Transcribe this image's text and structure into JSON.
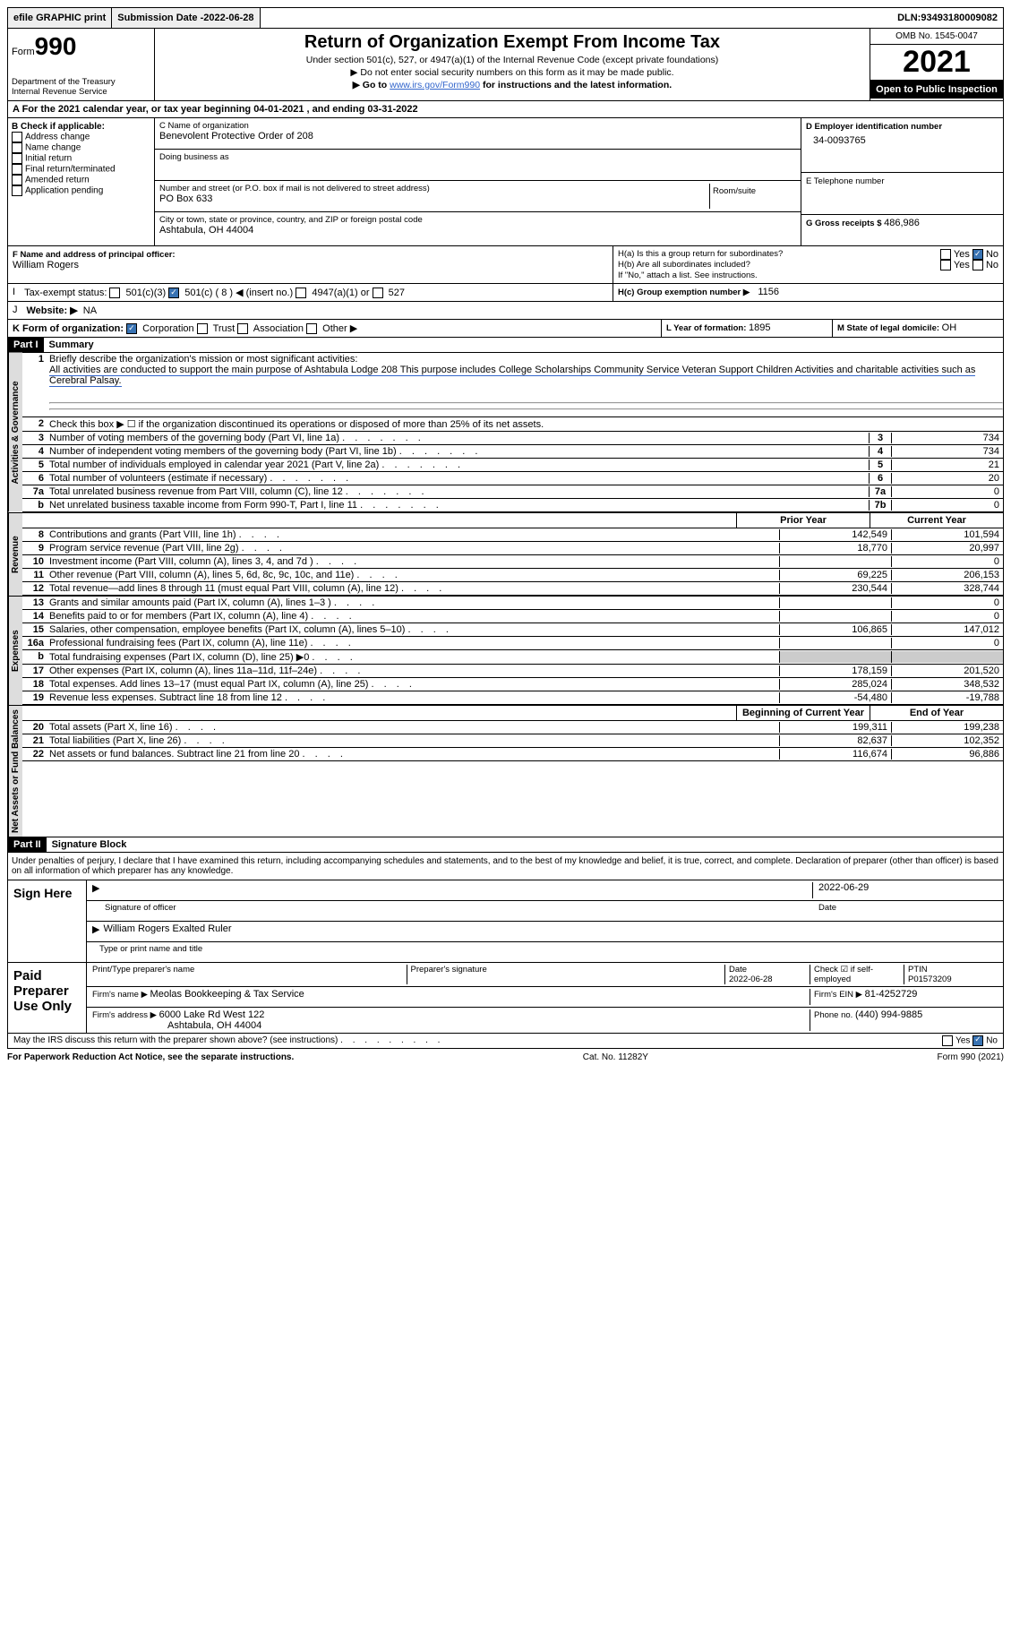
{
  "topbar": {
    "efile": "efile GRAPHIC print",
    "sub_label": "Submission Date - ",
    "sub_date": "2022-06-28",
    "dln_label": "DLN: ",
    "dln": "93493180009082"
  },
  "header": {
    "form_word": "Form",
    "form_no": "990",
    "dept": "Department of the Treasury",
    "irs": "Internal Revenue Service",
    "title": "Return of Organization Exempt From Income Tax",
    "sub1": "Under section 501(c), 527, or 4947(a)(1) of the Internal Revenue Code (except private foundations)",
    "sub2": "▶ Do not enter social security numbers on this form as it may be made public.",
    "sub3_pre": "▶ Go to ",
    "sub3_link": "www.irs.gov/Form990",
    "sub3_post": " for instructions and the latest information.",
    "omb": "OMB No. 1545-0047",
    "year": "2021",
    "open": "Open to Public Inspection"
  },
  "A": {
    "text": "A For the 2021 calendar year, or tax year beginning 04-01-2021   , and ending 03-31-2022"
  },
  "B": {
    "title": "B Check if applicable:",
    "items": [
      "Address change",
      "Name change",
      "Initial return",
      "Final return/terminated",
      "Amended return",
      "Application pending"
    ]
  },
  "C": {
    "label": "C Name of organization",
    "name": "Benevolent Protective Order of 208",
    "dba": "Doing business as",
    "addr_label": "Number and street (or P.O. box if mail is not delivered to street address)",
    "room": "Room/suite",
    "addr": "PO Box 633",
    "city_label": "City or town, state or province, country, and ZIP or foreign postal code",
    "city": "Ashtabula, OH  44004"
  },
  "D": {
    "label": "D Employer identification number",
    "val": "34-0093765"
  },
  "E": {
    "label": "E Telephone number",
    "val": ""
  },
  "G": {
    "label": "G Gross receipts $ ",
    "val": "486,986"
  },
  "F": {
    "label": "F  Name and address of principal officer:",
    "name": "William Rogers"
  },
  "H": {
    "a": "H(a)  Is this a group return for subordinates?",
    "b": "H(b)  Are all subordinates included?",
    "c": "H(c)  Group exemption number ▶",
    "c_val": "1156",
    "note": "If \"No,\" attach a list. See instructions.",
    "yes": "Yes",
    "no": "No"
  },
  "I": {
    "label": "Tax-exempt status:",
    "o1": "501(c)(3)",
    "o2": "501(c) ( 8 ) ◀ (insert no.)",
    "o3": "4947(a)(1) or",
    "o4": "527",
    "marked": 2
  },
  "J": {
    "label": "Website: ▶",
    "val": "NA"
  },
  "K": {
    "label": "K Form of organization:",
    "o": [
      "Corporation",
      "Trust",
      "Association",
      "Other ▶"
    ],
    "marked": 0
  },
  "L": {
    "label": "L Year of formation: ",
    "val": "1895"
  },
  "M": {
    "label": "M State of legal domicile: ",
    "val": "OH"
  },
  "part1": {
    "label": "Part I",
    "title": "Summary"
  },
  "tabs": [
    "Activities & Governance",
    "Revenue",
    "Expenses",
    "Net Assets or Fund Balances"
  ],
  "s1": {
    "l1": "Briefly describe the organization's mission or most significant activities:",
    "l1v": "All activities are conducted to support the main purpose of Ashtabula Lodge 208 This purpose includes College Scholarships Community Service Veteran Support Children Activities and charitable activities such as Cerebral Palsay.",
    "l2": "Check this box ▶ ☐  if the organization discontinued its operations or disposed of more than 25% of its net assets.",
    "rows": [
      {
        "n": "3",
        "d": "Number of voting members of the governing body (Part VI, line 1a)",
        "b": "3",
        "v": "734"
      },
      {
        "n": "4",
        "d": "Number of independent voting members of the governing body (Part VI, line 1b)",
        "b": "4",
        "v": "734"
      },
      {
        "n": "5",
        "d": "Total number of individuals employed in calendar year 2021 (Part V, line 2a)",
        "b": "5",
        "v": "21"
      },
      {
        "n": "6",
        "d": "Total number of volunteers (estimate if necessary)",
        "b": "6",
        "v": "20"
      },
      {
        "n": "7a",
        "d": "Total unrelated business revenue from Part VIII, column (C), line 12",
        "b": "7a",
        "v": "0"
      },
      {
        "n": "b",
        "d": "Net unrelated business taxable income from Form 990-T, Part I, line 11",
        "b": "7b",
        "v": "0"
      }
    ]
  },
  "s2hdr": {
    "py": "Prior Year",
    "cy": "Current Year"
  },
  "s2": [
    {
      "n": "8",
      "d": "Contributions and grants (Part VIII, line 1h)",
      "p": "142,549",
      "c": "101,594"
    },
    {
      "n": "9",
      "d": "Program service revenue (Part VIII, line 2g)",
      "p": "18,770",
      "c": "20,997"
    },
    {
      "n": "10",
      "d": "Investment income (Part VIII, column (A), lines 3, 4, and 7d )",
      "p": "",
      "c": "0"
    },
    {
      "n": "11",
      "d": "Other revenue (Part VIII, column (A), lines 5, 6d, 8c, 9c, 10c, and 11e)",
      "p": "69,225",
      "c": "206,153"
    },
    {
      "n": "12",
      "d": "Total revenue—add lines 8 through 11 (must equal Part VIII, column (A), line 12)",
      "p": "230,544",
      "c": "328,744"
    }
  ],
  "s3": [
    {
      "n": "13",
      "d": "Grants and similar amounts paid (Part IX, column (A), lines 1–3 )",
      "p": "",
      "c": "0"
    },
    {
      "n": "14",
      "d": "Benefits paid to or for members (Part IX, column (A), line 4)",
      "p": "",
      "c": "0"
    },
    {
      "n": "15",
      "d": "Salaries, other compensation, employee benefits (Part IX, column (A), lines 5–10)",
      "p": "106,865",
      "c": "147,012"
    },
    {
      "n": "16a",
      "d": "Professional fundraising fees (Part IX, column (A), line 11e)",
      "p": "",
      "c": "0"
    },
    {
      "n": "b",
      "d": "Total fundraising expenses (Part IX, column (D), line 25) ▶0",
      "p": "shade",
      "c": "shade"
    },
    {
      "n": "17",
      "d": "Other expenses (Part IX, column (A), lines 11a–11d, 11f–24e)",
      "p": "178,159",
      "c": "201,520"
    },
    {
      "n": "18",
      "d": "Total expenses. Add lines 13–17 (must equal Part IX, column (A), line 25)",
      "p": "285,024",
      "c": "348,532"
    },
    {
      "n": "19",
      "d": "Revenue less expenses. Subtract line 18 from line 12",
      "p": "-54,480",
      "c": "-19,788"
    }
  ],
  "s4hdr": {
    "b": "Beginning of Current Year",
    "e": "End of Year"
  },
  "s4": [
    {
      "n": "20",
      "d": "Total assets (Part X, line 16)",
      "p": "199,311",
      "c": "199,238"
    },
    {
      "n": "21",
      "d": "Total liabilities (Part X, line 26)",
      "p": "82,637",
      "c": "102,352"
    },
    {
      "n": "22",
      "d": "Net assets or fund balances. Subtract line 21 from line 20",
      "p": "116,674",
      "c": "96,886"
    }
  ],
  "part2": {
    "label": "Part II",
    "title": "Signature Block"
  },
  "decl": "Under penalties of perjury, I declare that I have examined this return, including accompanying schedules and statements, and to the best of my knowledge and belief, it is true, correct, and complete. Declaration of preparer (other than officer) is based on all information of which preparer has any knowledge.",
  "sign": {
    "here": "Sign Here",
    "sig": "Signature of officer",
    "date": "Date",
    "date_v": "2022-06-29",
    "name": "William Rogers Exalted Ruler",
    "type": "Type or print name and title"
  },
  "paid": {
    "label": "Paid Preparer Use Only",
    "h": [
      "Print/Type preparer's name",
      "Preparer's signature",
      "Date",
      "",
      "PTIN"
    ],
    "date": "2022-06-28",
    "chk": "Check ☑ if self-employed",
    "ptin": "P01573209",
    "firm_l": "Firm's name     ▶ ",
    "firm": "Meolas Bookkeeping & Tax Service",
    "ein_l": "Firm's EIN ▶ ",
    "ein": "81-4252729",
    "addr_l": "Firm's address ▶ ",
    "addr1": "6000 Lake Rd West 122",
    "addr2": "Ashtabula, OH  44004",
    "ph_l": "Phone no. ",
    "ph": "(440) 994-9885"
  },
  "discuss": "May the IRS discuss this return with the preparer shown above? (see instructions)",
  "footer": {
    "l": "For Paperwork Reduction Act Notice, see the separate instructions.",
    "c": "Cat. No. 11282Y",
    "r": "Form 990 (2021)"
  }
}
